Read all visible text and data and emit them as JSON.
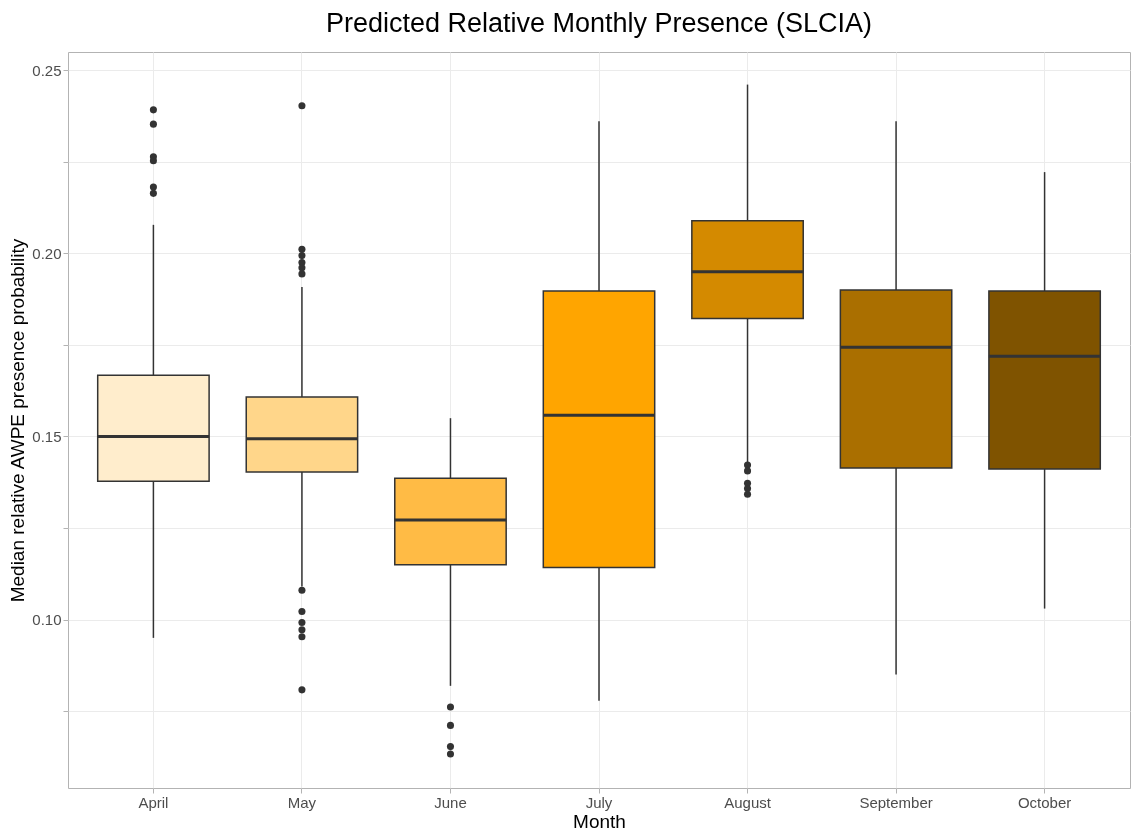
{
  "chart_data": {
    "type": "box",
    "title": "Predicted Relative Monthly Presence (SLCIA)",
    "xlabel": "Month",
    "ylabel": "Median relative AWPE presence probability",
    "categories": [
      "April",
      "May",
      "June",
      "July",
      "August",
      "September",
      "October"
    ],
    "colors": [
      "#ffedcc",
      "#ffd68a",
      "#ffbb45",
      "#ffa500",
      "#d48a00",
      "#aa6f00",
      "#7f5300"
    ],
    "boxes": [
      {
        "low": 0.095,
        "q1": 0.1378,
        "median": 0.15,
        "q3": 0.1667,
        "high": 0.2078,
        "outliers": [
          0.2392,
          0.2353,
          0.2264,
          0.2253,
          0.2181,
          0.2164
        ]
      },
      {
        "low": 0.109,
        "q1": 0.1403,
        "median": 0.1494,
        "q3": 0.1608,
        "high": 0.1908,
        "outliers": [
          0.2403,
          0.2011,
          0.1994,
          0.1975,
          0.1961,
          0.1944,
          0.108,
          0.1022,
          0.0992,
          0.0972,
          0.0953,
          0.0808
        ]
      },
      {
        "low": 0.0819,
        "q1": 0.115,
        "median": 0.1272,
        "q3": 0.1386,
        "high": 0.155,
        "outliers": [
          0.0761,
          0.0711,
          0.0653,
          0.0633
        ]
      },
      {
        "low": 0.0778,
        "q1": 0.1142,
        "median": 0.1558,
        "q3": 0.1897,
        "high": 0.2361
      },
      {
        "low": 0.143,
        "q1": 0.1822,
        "median": 0.195,
        "q3": 0.2089,
        "high": 0.2461,
        "outliers": [
          0.1422,
          0.1406,
          0.1372,
          0.1358,
          0.1342
        ]
      },
      {
        "low": 0.085,
        "q1": 0.1414,
        "median": 0.1744,
        "q3": 0.19,
        "high": 0.2361
      },
      {
        "low": 0.103,
        "q1": 0.1411,
        "median": 0.1719,
        "q3": 0.1897,
        "high": 0.2222
      }
    ],
    "ylim": [
      0.054,
      0.255
    ],
    "yticks": [
      {
        "value": 0.075,
        "label": null
      },
      {
        "value": 0.1,
        "label": "0.10"
      },
      {
        "value": 0.125,
        "label": null
      },
      0.15,
      {
        "value": 0.175,
        "label": null
      },
      {
        "value": 0.2,
        "label": "0.20"
      },
      {
        "value": 0.225,
        "label": null
      },
      0.25
    ],
    "grid": true
  }
}
